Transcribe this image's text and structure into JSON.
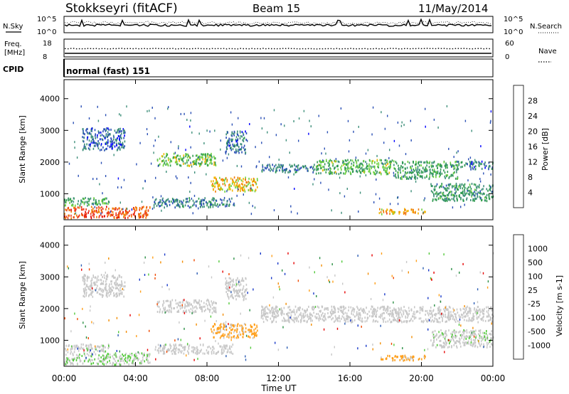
{
  "header": {
    "station": "Stokkseyri (fitACF)",
    "beam": "Beam 15",
    "date": "11/May/2014"
  },
  "strips": {
    "nsky_label": "N.Sky",
    "nsearch_label": "N.Search",
    "noise_ticks": [
      "10^5",
      "10^0"
    ],
    "freq_label": "Freq.",
    "freq_unit": "[MHz]",
    "freq_ticks": [
      "18",
      "8"
    ],
    "nave_ticks": [
      "60",
      "0"
    ],
    "nave_label": "Nave",
    "cpid_label": "CPID",
    "cpid_value": "normal (fast) 151"
  },
  "colors": {
    "power": [
      "#0000ff",
      "#2a4fb5",
      "#3e8f7a",
      "#2f9a50",
      "#6fd23f",
      "#f2b400",
      "#f07a00",
      "#ee3b1b",
      "#e10000"
    ],
    "velocity": [
      "#e60000",
      "#f04a00",
      "#f38d00",
      "#ff9f1a",
      "#c8c8c8",
      "#c8c8c8",
      "#52c93a",
      "#2a8f44",
      "#2c5db4",
      "#1838c8"
    ]
  },
  "chart_data": [
    {
      "type": "heatmap",
      "title": "",
      "xlabel": "Time UT",
      "ylabel": "Slant Range [km]",
      "xlim": [
        0,
        24
      ],
      "ylim": [
        180,
        4600
      ],
      "x_ticks": [
        "00:00",
        "04:00",
        "08:00",
        "12:00",
        "16:00",
        "20:00",
        "00:00"
      ],
      "y_ticks": [
        "1000",
        "2000",
        "3000",
        "4000"
      ],
      "colorbar": {
        "label": "Power [dB]",
        "ticks": [
          "28",
          "24",
          "20",
          "16",
          "12",
          "8",
          "4"
        ],
        "range": [
          0,
          30
        ]
      },
      "regions": [
        {
          "t0": 0.0,
          "t1": 4.8,
          "r0": 260,
          "r1": 620,
          "value": 24
        },
        {
          "t0": 0.0,
          "t1": 2.5,
          "r0": 650,
          "r1": 900,
          "value": 12
        },
        {
          "t0": 1.0,
          "t1": 3.4,
          "r0": 2400,
          "r1": 3100,
          "value": 6
        },
        {
          "t0": 5.2,
          "t1": 8.5,
          "r0": 1900,
          "r1": 2300,
          "value": 14
        },
        {
          "t0": 8.2,
          "t1": 10.8,
          "r0": 1100,
          "r1": 1550,
          "value": 18
        },
        {
          "t0": 9.0,
          "t1": 10.2,
          "r0": 2300,
          "r1": 3000,
          "value": 7
        },
        {
          "t0": 11.0,
          "t1": 14.0,
          "r0": 1700,
          "r1": 1950,
          "value": 7
        },
        {
          "t0": 14.0,
          "t1": 18.5,
          "r0": 1650,
          "r1": 2100,
          "value": 13
        },
        {
          "t0": 18.5,
          "t1": 22.0,
          "r0": 1500,
          "r1": 2050,
          "value": 11
        },
        {
          "t0": 22.0,
          "t1": 24.0,
          "r0": 1800,
          "r1": 2050,
          "value": 7
        },
        {
          "t0": 17.6,
          "t1": 20.2,
          "r0": 380,
          "r1": 550,
          "value": 20
        },
        {
          "t0": 20.5,
          "t1": 24.0,
          "r0": 800,
          "r1": 1350,
          "value": 10
        },
        {
          "t0": 5.0,
          "t1": 9.5,
          "r0": 600,
          "r1": 900,
          "value": 8
        }
      ]
    },
    {
      "type": "heatmap",
      "title": "",
      "xlabel": "Time UT",
      "ylabel": "Slant Range [km]",
      "xlim": [
        0,
        24
      ],
      "ylim": [
        180,
        4600
      ],
      "x_ticks": [
        "00:00",
        "04:00",
        "08:00",
        "12:00",
        "16:00",
        "20:00",
        "00:00"
      ],
      "y_ticks": [
        "1000",
        "2000",
        "3000",
        "4000"
      ],
      "colorbar": {
        "label": "Velocity [m s-1]",
        "ticks": [
          "1000",
          "500",
          "100",
          "25",
          "-25",
          "-100",
          "-500",
          "-1000"
        ],
        "range": [
          -1200,
          1200
        ]
      },
      "regions": [
        {
          "t0": 0.0,
          "t1": 4.8,
          "r0": 260,
          "r1": 620,
          "value": 220
        },
        {
          "t0": 0.0,
          "t1": 2.5,
          "r0": 650,
          "r1": 900,
          "value": 120
        },
        {
          "t0": 1.0,
          "t1": 3.4,
          "r0": 2400,
          "r1": 3100,
          "value": 0
        },
        {
          "t0": 5.2,
          "t1": 8.5,
          "r0": 1900,
          "r1": 2300,
          "value": 0
        },
        {
          "t0": 8.2,
          "t1": 10.8,
          "r0": 1100,
          "r1": 1550,
          "value": -320
        },
        {
          "t0": 9.0,
          "t1": 10.2,
          "r0": 2300,
          "r1": 3000,
          "value": 0
        },
        {
          "t0": 11.0,
          "t1": 24.0,
          "r0": 1600,
          "r1": 2100,
          "value": 0
        },
        {
          "t0": 17.6,
          "t1": 20.2,
          "r0": 380,
          "r1": 550,
          "value": -320
        },
        {
          "t0": 20.5,
          "t1": 24.0,
          "r0": 800,
          "r1": 1350,
          "value": 150
        },
        {
          "t0": 5.0,
          "t1": 9.5,
          "r0": 600,
          "r1": 900,
          "value": 60
        }
      ]
    }
  ]
}
